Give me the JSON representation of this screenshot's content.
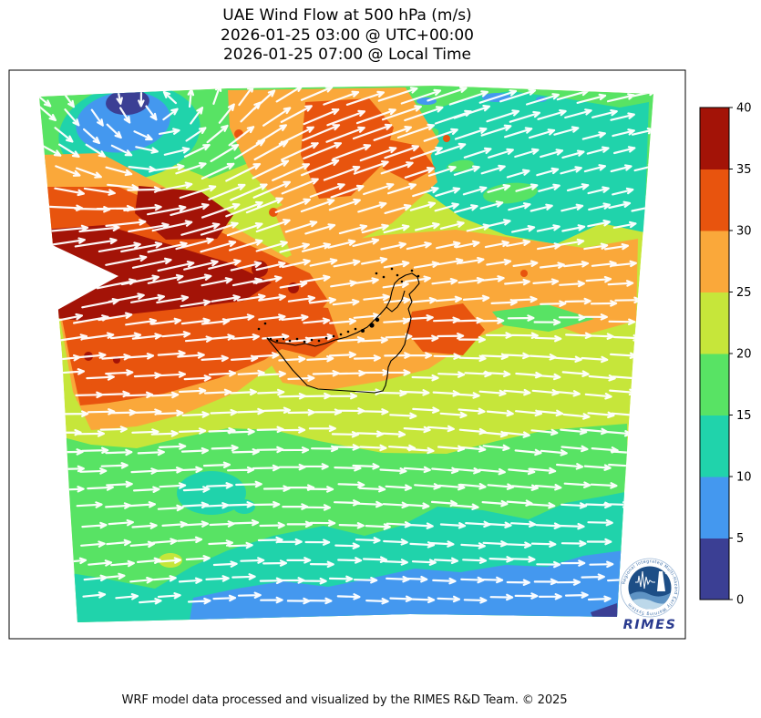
{
  "title": {
    "line1": "UAE Wind Flow at 500 hPa (m/s)",
    "line2": "2026-01-25 03:00 @ UTC+00:00",
    "line3": "2026-01-25 07:00 @ Local Time"
  },
  "caption": "WRF model data processed and visualized by the RIMES R&D Team. © 2025",
  "logo": {
    "name": "RIMES",
    "ring_text": "Regional Integrated Multi-Hazard Early Warning System"
  },
  "chart_data": {
    "type": "heatmap",
    "title": "UAE Wind Flow at 500 hPa (m/s)",
    "valid_utc": "2026-01-25 03:00 @ UTC+00:00",
    "valid_local": "2026-01-25 07:00 @ Local Time",
    "variable": "wind speed at 500 hPa",
    "units": "m/s",
    "colorbar": {
      "orientation": "vertical",
      "position": "right",
      "ticks": [
        0,
        5,
        10,
        15,
        20,
        25,
        30,
        35,
        40
      ],
      "band_colors_low_to_high": [
        "#3b3f94",
        "#4498ef",
        "#20d3ab",
        "#58e364",
        "#c6e63a",
        "#faa83a",
        "#e8540e",
        "#a31307"
      ]
    },
    "overlay": "white wind vector arrows (quiver); flow predominantly west-to-east, cyclonic curl in northwest corner, jet streak entering from the west",
    "map_outline": "United Arab Emirates borders and coastline",
    "regions": [
      {
        "area": "northwest corner vortex",
        "value_range_ms": [
          0,
          10
        ]
      },
      {
        "area": "west-central jet streak",
        "value_range_ms": [
          35,
          40
        ]
      },
      {
        "area": "band around jet / upper-left diagonal",
        "value_range_ms": [
          30,
          35
        ]
      },
      {
        "area": "central UAE vicinity",
        "value_range_ms": [
          25,
          30
        ]
      },
      {
        "area": "north-east quadrant",
        "value_range_ms": [
          10,
          20
        ]
      },
      {
        "area": "east and south-east background",
        "value_range_ms": [
          20,
          25
        ]
      },
      {
        "area": "lower third of domain",
        "value_range_ms": [
          10,
          20
        ]
      },
      {
        "area": "bottom edge of domain",
        "value_range_ms": [
          5,
          10
        ]
      }
    ]
  }
}
